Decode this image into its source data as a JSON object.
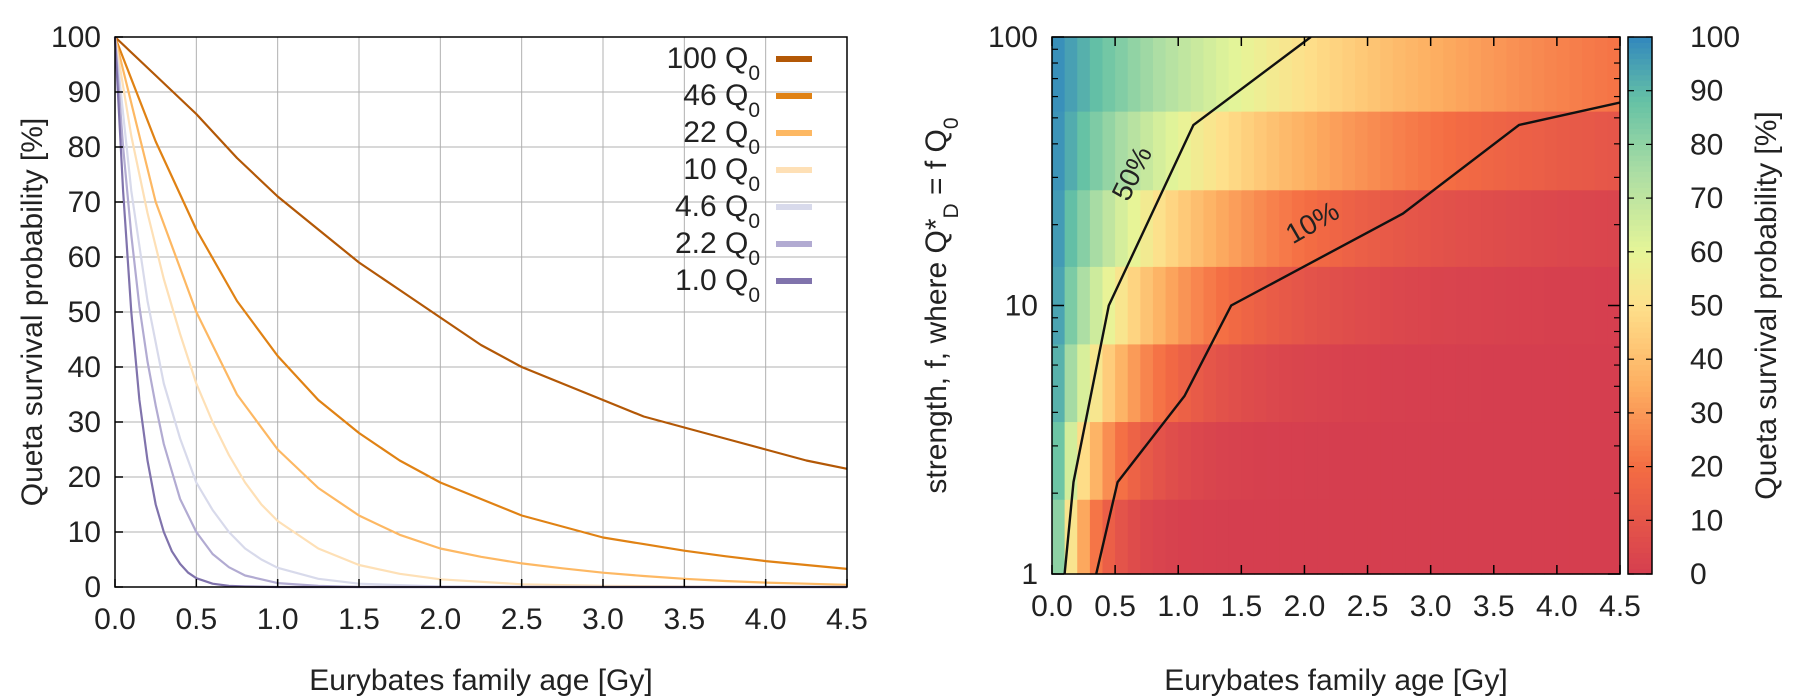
{
  "figure_description": "Two-panel figure of Queta survival probability versus Eurybates family age",
  "chart_data": [
    {
      "type": "line",
      "panel": "left",
      "xlabel": "Eurybates family age [Gy]",
      "ylabel": "Queta survival probability [%]",
      "xlim": [
        0,
        4.5
      ],
      "ylim": [
        0,
        100
      ],
      "xticks": [
        "0.0",
        "0.5",
        "1.0",
        "1.5",
        "2.0",
        "2.5",
        "3.0",
        "3.5",
        "4.0",
        "4.5"
      ],
      "yticks": [
        "0",
        "10",
        "20",
        "30",
        "40",
        "50",
        "60",
        "70",
        "80",
        "90",
        "100"
      ],
      "grid": true,
      "legend_position": "top-right",
      "series": [
        {
          "name": "100 Q",
          "sub": "0",
          "color": "#b35806",
          "x": [
            0,
            0.25,
            0.5,
            0.75,
            1.0,
            1.25,
            1.5,
            1.75,
            2.0,
            2.25,
            2.5,
            2.75,
            3.0,
            3.25,
            3.5,
            3.75,
            4.0,
            4.25,
            4.5
          ],
          "y": [
            100,
            93,
            86,
            78,
            71,
            65,
            59,
            54,
            49,
            44,
            40,
            37,
            34,
            31,
            29,
            27,
            25,
            23,
            21.5
          ]
        },
        {
          "name": "46 Q",
          "sub": "0",
          "color": "#e08214",
          "x": [
            0,
            0.25,
            0.5,
            0.75,
            1.0,
            1.25,
            1.5,
            1.75,
            2.0,
            2.25,
            2.5,
            2.75,
            3.0,
            3.25,
            3.5,
            3.75,
            4.0,
            4.25,
            4.5
          ],
          "y": [
            100,
            81,
            65,
            52,
            42,
            34,
            28,
            23,
            19,
            16,
            13,
            11,
            9,
            7.8,
            6.6,
            5.6,
            4.7,
            4,
            3.3
          ]
        },
        {
          "name": "22 Q",
          "sub": "0",
          "color": "#fdb863",
          "x": [
            0,
            0.25,
            0.5,
            0.75,
            1.0,
            1.25,
            1.5,
            1.75,
            2.0,
            2.25,
            2.5,
            2.75,
            3.0,
            3.25,
            3.5,
            3.75,
            4.0,
            4.25,
            4.5
          ],
          "y": [
            100,
            70,
            50,
            35,
            25,
            18,
            13,
            9.5,
            7,
            5.5,
            4.3,
            3.4,
            2.6,
            2,
            1.5,
            1.1,
            0.8,
            0.6,
            0.4
          ]
        },
        {
          "name": "10 Q",
          "sub": "0",
          "color": "#fee0b6",
          "x": [
            0,
            0.1,
            0.2,
            0.3,
            0.4,
            0.5,
            0.6,
            0.7,
            0.8,
            0.9,
            1.0,
            1.25,
            1.5,
            1.75,
            2.0,
            2.5,
            3.0,
            3.5,
            4.0,
            4.5
          ],
          "y": [
            100,
            82,
            68,
            56,
            46,
            37,
            30,
            24,
            19,
            15,
            12,
            7,
            4,
            2.4,
            1.4,
            0.5,
            0.2,
            0.1,
            0,
            0
          ]
        },
        {
          "name": "4.6 Q",
          "sub": "0",
          "color": "#d8daeb",
          "x": [
            0,
            0.1,
            0.2,
            0.3,
            0.4,
            0.5,
            0.6,
            0.7,
            0.8,
            0.9,
            1.0,
            1.25,
            1.5,
            2.0,
            2.5,
            3.0,
            4.5
          ],
          "y": [
            100,
            72,
            52,
            37,
            27,
            19,
            14,
            10,
            7,
            5,
            3.5,
            1.5,
            0.6,
            0.1,
            0,
            0,
            0
          ]
        },
        {
          "name": "2.2 Q",
          "sub": "0",
          "color": "#b2abd2",
          "x": [
            0,
            0.05,
            0.1,
            0.15,
            0.2,
            0.25,
            0.3,
            0.35,
            0.4,
            0.5,
            0.6,
            0.7,
            0.8,
            1.0,
            1.25,
            1.5,
            2.0,
            4.5
          ],
          "y": [
            100,
            80,
            64,
            51,
            41,
            33,
            26,
            21,
            16,
            10,
            6,
            3.6,
            2.1,
            0.7,
            0.2,
            0,
            0,
            0
          ]
        },
        {
          "name": "1.0 Q",
          "sub": "0",
          "color": "#8073ac",
          "x": [
            0,
            0.05,
            0.1,
            0.15,
            0.2,
            0.25,
            0.3,
            0.35,
            0.4,
            0.45,
            0.5,
            0.6,
            0.7,
            0.8,
            1.0,
            4.5
          ],
          "y": [
            100,
            72,
            50,
            34,
            23,
            15,
            10,
            6.5,
            4.2,
            2.6,
            1.6,
            0.6,
            0.2,
            0.1,
            0,
            0
          ]
        }
      ]
    },
    {
      "type": "heatmap",
      "panel": "right",
      "xlabel": "Eurybates family age [Gy]",
      "ylabel_parts": [
        "strength, f, where Q*",
        "D",
        " = f Q",
        "0"
      ],
      "xlim": [
        0,
        4.5
      ],
      "ylim": [
        1,
        100
      ],
      "yscale": "log",
      "xticks": [
        "0.0",
        "0.5",
        "1.0",
        "1.5",
        "2.0",
        "2.5",
        "3.0",
        "3.5",
        "4.0",
        "4.5"
      ],
      "yticks": [
        "1",
        "10",
        "100"
      ],
      "rows": [
        {
          "f_low": 1.0,
          "f_high": 1.9,
          "p0": 100,
          "tau": 0.23
        },
        {
          "f_low": 1.9,
          "f_high": 3.7,
          "p0": 100,
          "tau": 0.35
        },
        {
          "f_low": 3.7,
          "f_high": 7.2,
          "p0": 100,
          "tau": 0.55
        },
        {
          "f_low": 7.2,
          "f_high": 14,
          "p0": 100,
          "tau": 0.85
        },
        {
          "f_low": 14,
          "f_high": 27,
          "p0": 100,
          "tau": 1.25
        },
        {
          "f_low": 27,
          "f_high": 53,
          "p0": 100,
          "tau": 1.95
        },
        {
          "f_low": 53,
          "f_high": 100,
          "p0": 100,
          "tau": 2.9
        }
      ],
      "colorbar": {
        "label": "Queta survival probability [%]",
        "ticks": [
          "0",
          "10",
          "20",
          "30",
          "40",
          "50",
          "60",
          "70",
          "80",
          "90",
          "100"
        ],
        "range": [
          0,
          100
        ],
        "stops": [
          {
            "v": 0,
            "color": "#d53e4f"
          },
          {
            "v": 20,
            "color": "#f46d43"
          },
          {
            "v": 35,
            "color": "#fdae61"
          },
          {
            "v": 50,
            "color": "#fee08b"
          },
          {
            "v": 60,
            "color": "#e6f598"
          },
          {
            "v": 75,
            "color": "#abdda4"
          },
          {
            "v": 88,
            "color": "#66c2a5"
          },
          {
            "v": 100,
            "color": "#3288bd"
          }
        ]
      },
      "contours": [
        {
          "label": "50%",
          "x": [
            0.1,
            0.17,
            0.45,
            1.12,
            2.05
          ],
          "y": [
            1,
            2.2,
            10,
            47,
            100
          ],
          "label_at": [
            0.7,
            30
          ]
        },
        {
          "label": "10%",
          "x": [
            0.35,
            0.52,
            1.05,
            1.42,
            2.78,
            3.7,
            4.5
          ],
          "y": [
            1,
            2.2,
            4.6,
            10,
            22,
            47,
            57
          ],
          "label_at": [
            2.1,
            19
          ]
        }
      ]
    }
  ]
}
